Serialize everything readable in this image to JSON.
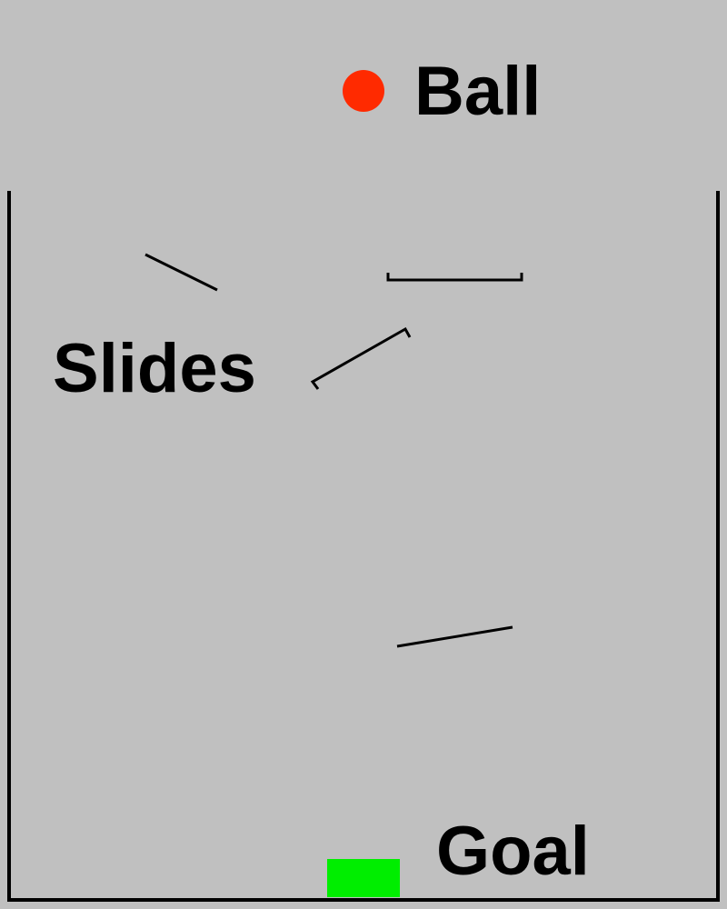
{
  "labels": {
    "ball": "Ball",
    "slides": "Slides",
    "goal": "Goal"
  },
  "colors": {
    "background": "#c0c0c0",
    "ball": "#ff2a00",
    "goal": "#00ee00",
    "walls": "#000000",
    "slides": "#000000"
  },
  "objects": {
    "ball": "red circle",
    "goal": "green rectangle",
    "container": "open-top container with side walls and floor",
    "slides": [
      "slide-1",
      "slide-2",
      "slide-3",
      "slide-4"
    ]
  }
}
